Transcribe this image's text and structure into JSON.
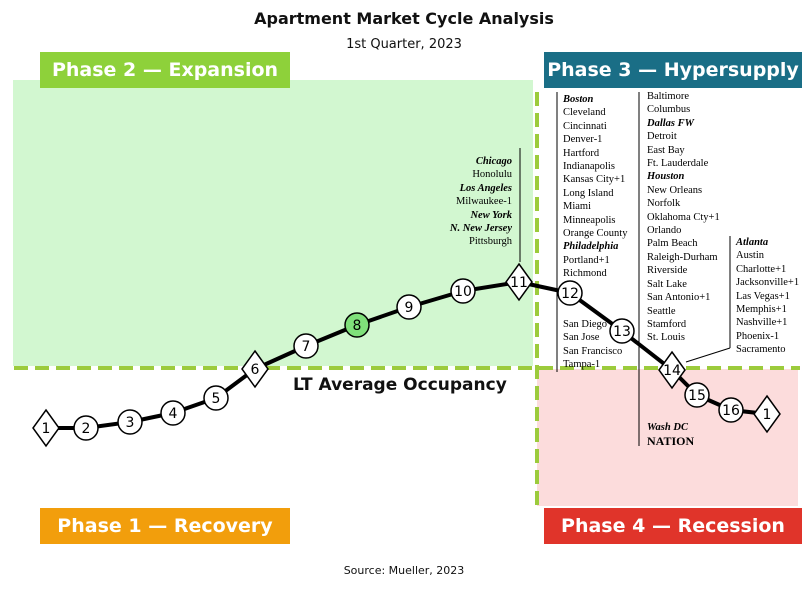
{
  "title": "Apartment Market Cycle Analysis",
  "subtitle": "1st Quarter, 2023",
  "source": "Source: Mueller, 2023",
  "phases": {
    "phase1": "Phase 1 — Recovery",
    "phase2": "Phase 2 — Expansion",
    "phase3": "Phase 3 — Hypersupply",
    "phase4": "Phase 4 — Recession"
  },
  "lt_label": "LT Average Occupancy",
  "colors": {
    "phase1": "#f29e0c",
    "phase2": "#8ed13a",
    "phase3": "#1a6e86",
    "phase4": "#e0342a",
    "expansion_bg": "#d2f7d0",
    "recession_bg": "#fcdcdc",
    "highlight_node": "#7fe07a",
    "dashed_line": "#9ccb3c"
  },
  "nodes": [
    {
      "label": "1",
      "shape": "diamond"
    },
    {
      "label": "2",
      "shape": "circle"
    },
    {
      "label": "3",
      "shape": "circle"
    },
    {
      "label": "4",
      "shape": "circle"
    },
    {
      "label": "5",
      "shape": "circle"
    },
    {
      "label": "6",
      "shape": "diamond"
    },
    {
      "label": "7",
      "shape": "circle"
    },
    {
      "label": "8",
      "shape": "circle",
      "highlight": true
    },
    {
      "label": "9",
      "shape": "circle"
    },
    {
      "label": "10",
      "shape": "circle"
    },
    {
      "label": "11",
      "shape": "diamond"
    },
    {
      "label": "12",
      "shape": "circle"
    },
    {
      "label": "13",
      "shape": "circle"
    },
    {
      "label": "14",
      "shape": "diamond"
    },
    {
      "label": "15",
      "shape": "circle"
    },
    {
      "label": "16",
      "shape": "circle"
    },
    {
      "label": "1",
      "shape": "diamond"
    }
  ],
  "markets": {
    "point11": [
      {
        "name": "Chicago",
        "bold": true
      },
      {
        "name": "Honolulu"
      },
      {
        "name": "Los Angeles",
        "bold": true
      },
      {
        "name": "Milwaukee-1"
      },
      {
        "name": "New York",
        "bold": true
      },
      {
        "name": "N. New Jersey",
        "bold": true
      },
      {
        "name": "Pittsburgh"
      }
    ],
    "point12": [
      {
        "name": "Boston",
        "bold": true
      },
      {
        "name": "Cleveland"
      },
      {
        "name": "Cincinnati"
      },
      {
        "name": "Denver-1"
      },
      {
        "name": "Hartford"
      },
      {
        "name": "Indianapolis"
      },
      {
        "name": "Kansas City+1"
      },
      {
        "name": "Long Island"
      },
      {
        "name": "Miami"
      },
      {
        "name": "Minneapolis"
      },
      {
        "name": "Orange County"
      },
      {
        "name": "Philadelphia",
        "bold": true
      },
      {
        "name": "Portland+1"
      },
      {
        "name": "Richmond"
      }
    ],
    "point12_lower": [
      {
        "name": "San Diego"
      },
      {
        "name": "San Jose"
      },
      {
        "name": "San Francisco"
      },
      {
        "name": "Tampa-1"
      }
    ],
    "point13": [
      {
        "name": "Baltimore"
      },
      {
        "name": "Columbus"
      },
      {
        "name": "Dallas FW",
        "bold": true
      },
      {
        "name": "Detroit"
      },
      {
        "name": "East Bay"
      },
      {
        "name": "Ft. Lauderdale"
      },
      {
        "name": "Houston",
        "bold": true
      },
      {
        "name": "New Orleans"
      },
      {
        "name": "Norfolk"
      },
      {
        "name": "Oklahoma Cty+1"
      },
      {
        "name": "Orlando"
      },
      {
        "name": "Palm Beach"
      },
      {
        "name": "Raleigh-Durham"
      },
      {
        "name": "Riverside"
      },
      {
        "name": "Salt Lake"
      },
      {
        "name": "San Antonio+1"
      },
      {
        "name": "Seattle"
      },
      {
        "name": "Stamford"
      },
      {
        "name": "St. Louis"
      }
    ],
    "point13_lower": [
      {
        "name": "Wash DC",
        "bold": true
      }
    ],
    "nation": "NATION",
    "point14": [
      {
        "name": "Atlanta",
        "bold": true
      },
      {
        "name": "Austin"
      },
      {
        "name": "Charlotte+1"
      },
      {
        "name": "Jacksonville+1"
      },
      {
        "name": "Las Vegas+1"
      },
      {
        "name": "Memphis+1"
      },
      {
        "name": "Nashville+1"
      },
      {
        "name": "Phoenix-1"
      },
      {
        "name": "Sacramento"
      }
    ]
  }
}
